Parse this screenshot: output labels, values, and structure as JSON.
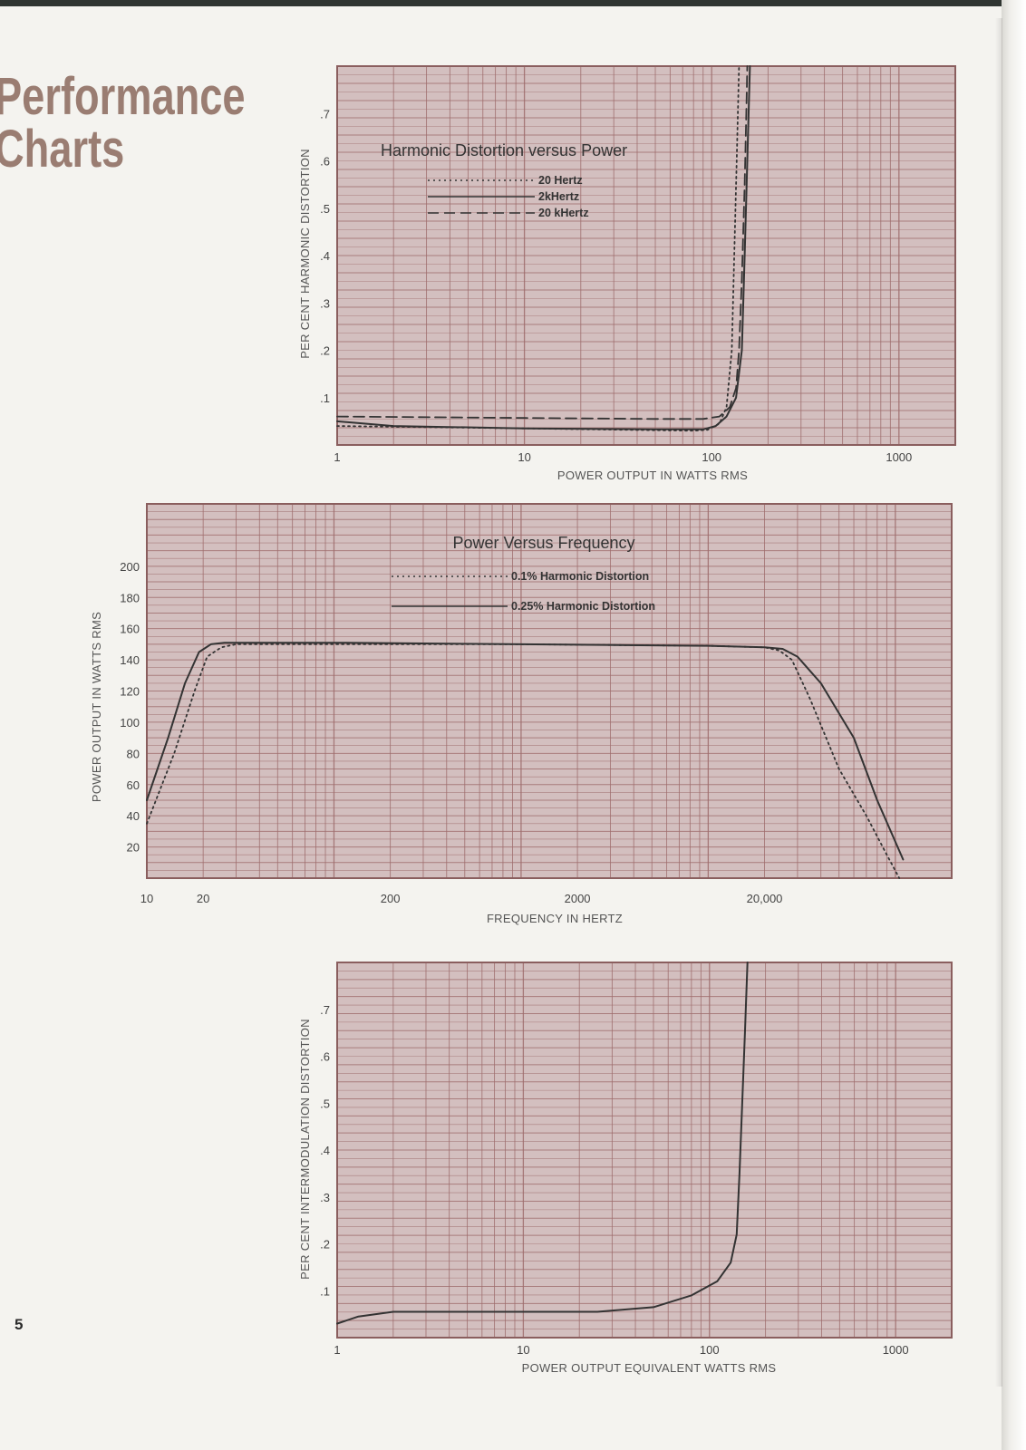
{
  "page": {
    "heading_line1": "Performance",
    "heading_line2": "Charts",
    "page_number": "5"
  },
  "colors": {
    "plot_background": "#d3bfbf",
    "grid_line": "#9e6c6c",
    "curve": "#333333",
    "heading": "#9a7d72"
  },
  "chart_data": [
    {
      "id": "harmonic-distortion-vs-power",
      "type": "line",
      "title": "Harmonic Distortion versus Power",
      "xlabel": "POWER OUTPUT IN WATTS RMS",
      "ylabel": "PER CENT HARMONIC DISTORTION",
      "x_scale": "log",
      "xlim": [
        1,
        2000
      ],
      "ylim": [
        0,
        0.8
      ],
      "grid": true,
      "legend_position": "top-left",
      "x_ticks": [
        1,
        10,
        100,
        1000
      ],
      "x_tick_labels": [
        "1",
        "10",
        "100",
        "1000"
      ],
      "y_ticks": [
        0.1,
        0.2,
        0.3,
        0.4,
        0.5,
        0.6,
        0.7
      ],
      "y_tick_labels": [
        ".1",
        ".2",
        ".3",
        ".4",
        ".5",
        ".6",
        ".7"
      ],
      "series": [
        {
          "name": "20 Hertz",
          "style": "dotted",
          "x": [
            1,
            10,
            80,
            95,
            110,
            120,
            128,
            132,
            136,
            140
          ],
          "y": [
            0.04,
            0.035,
            0.03,
            0.032,
            0.045,
            0.08,
            0.2,
            0.4,
            0.6,
            0.8
          ]
        },
        {
          "name": "2kHertz",
          "style": "solid",
          "x": [
            1,
            2,
            10,
            50,
            90,
            105,
            120,
            135,
            145,
            150,
            155,
            160
          ],
          "y": [
            0.05,
            0.04,
            0.035,
            0.033,
            0.033,
            0.04,
            0.06,
            0.1,
            0.2,
            0.4,
            0.6,
            0.8
          ]
        },
        {
          "name": "20 kHertz",
          "style": "dashed",
          "x": [
            1,
            10,
            50,
            90,
            110,
            125,
            135,
            140,
            145,
            150,
            153,
            155
          ],
          "y": [
            0.06,
            0.057,
            0.055,
            0.055,
            0.06,
            0.08,
            0.12,
            0.2,
            0.35,
            0.55,
            0.7,
            0.8
          ]
        }
      ]
    },
    {
      "id": "power-vs-frequency",
      "type": "line",
      "title": "Power Versus Frequency",
      "xlabel": "FREQUENCY IN HERTZ",
      "ylabel": "POWER OUTPUT IN WATTS RMS",
      "x_scale": "log",
      "xlim": [
        10,
        200000
      ],
      "ylim": [
        0,
        240
      ],
      "grid": true,
      "legend_position": "top-center",
      "x_ticks": [
        10,
        20,
        200,
        2000,
        20000
      ],
      "x_tick_labels": [
        "10",
        "20",
        "200",
        "2000",
        "20,000"
      ],
      "y_ticks": [
        20,
        40,
        60,
        80,
        100,
        120,
        140,
        160,
        180,
        200
      ],
      "y_tick_labels": [
        "20",
        "40",
        "60",
        "80",
        "100",
        "120",
        "140",
        "160",
        "180",
        "200"
      ],
      "series": [
        {
          "name": "0.1% Harmonic Distortion",
          "style": "dotted",
          "x": [
            10,
            14,
            18,
            21,
            25,
            30,
            100,
            1000,
            10000,
            20000,
            24000,
            28000,
            35000,
            50000,
            70000,
            90000,
            105000
          ],
          "y": [
            35,
            80,
            120,
            142,
            148,
            150,
            150,
            150,
            149,
            148,
            146,
            140,
            115,
            70,
            40,
            15,
            0
          ]
        },
        {
          "name": "0.25% Harmonic Distortion",
          "style": "solid",
          "x": [
            10,
            13,
            16,
            19,
            22,
            26,
            30,
            100,
            1000,
            10000,
            20000,
            25000,
            30000,
            40000,
            60000,
            80000,
            110000
          ],
          "y": [
            50,
            90,
            125,
            145,
            150,
            151,
            151,
            151,
            150,
            149,
            148,
            147,
            142,
            125,
            90,
            50,
            12
          ]
        }
      ]
    },
    {
      "id": "intermodulation-distortion",
      "type": "line",
      "title": "",
      "xlabel": "POWER OUTPUT EQUIVALENT WATTS RMS",
      "ylabel": "PER CENT INTERMODULATION DISTORTION",
      "x_scale": "log",
      "xlim": [
        1,
        2000
      ],
      "ylim": [
        0,
        0.8
      ],
      "grid": true,
      "x_ticks": [
        1,
        10,
        100,
        1000
      ],
      "x_tick_labels": [
        "1",
        "10",
        "100",
        "1000"
      ],
      "y_ticks": [
        0.1,
        0.2,
        0.3,
        0.4,
        0.5,
        0.6,
        0.7
      ],
      "y_tick_labels": [
        ".1",
        ".2",
        ".3",
        ".4",
        ".5",
        ".6",
        ".7"
      ],
      "series": [
        {
          "name": "",
          "style": "solid",
          "x": [
            1,
            1.3,
            2,
            5,
            10,
            25,
            50,
            80,
            110,
            130,
            140,
            145,
            150,
            155,
            160
          ],
          "y": [
            0.03,
            0.045,
            0.055,
            0.055,
            0.055,
            0.055,
            0.065,
            0.09,
            0.12,
            0.16,
            0.22,
            0.35,
            0.5,
            0.65,
            0.8
          ]
        }
      ]
    }
  ]
}
